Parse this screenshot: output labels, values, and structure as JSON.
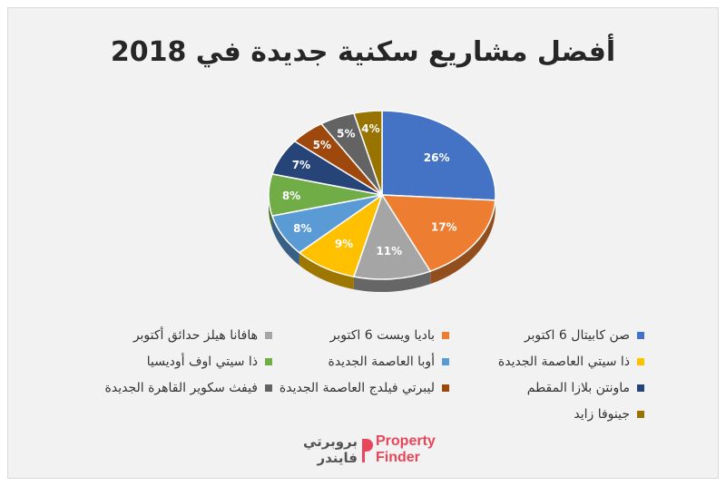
{
  "title": "أفضل مشاريع سكنية جديدة في 2018",
  "brand": {
    "arabic_line1": "بروبرتي",
    "arabic_line2": "فايندر",
    "english_line1": "Property",
    "english_line2": "Finder",
    "color": "#e8465a"
  },
  "chart_data": {
    "type": "pie",
    "title": "أفضل مشاريع سكنية جديدة في 2018",
    "slices": [
      {
        "label": "صن كابيتال 6 اكتوبر",
        "value": 26,
        "display": "26%",
        "color": "#4472c4"
      },
      {
        "label": "باديا ويست 6 اكتوبر",
        "value": 17,
        "display": "17%",
        "color": "#ed7d31"
      },
      {
        "label": "هافانا هيلز حدائق أكتوبر",
        "value": 11,
        "display": "11%",
        "color": "#a5a5a5"
      },
      {
        "label": "ذا سيتي العاصمة الجديدة",
        "value": 9,
        "display": "9%",
        "color": "#ffc000"
      },
      {
        "label": "أوبا العاصمة الجديدة",
        "value": 8,
        "display": "8%",
        "color": "#5b9bd5"
      },
      {
        "label": "ذا سيتي اوف أوديسيا",
        "value": 8,
        "display": "8%",
        "color": "#70ad47"
      },
      {
        "label": "ماونتن بلازا المقطم",
        "value": 7,
        "display": "7%",
        "color": "#264478"
      },
      {
        "label": "ليبرتي فيلدج العاصمة الجديدة",
        "value": 5,
        "display": "5%",
        "color": "#9e480e"
      },
      {
        "label": "فيفث سكوير القاهرة الجديدة",
        "value": 5,
        "display": "5%",
        "color": "#636363"
      },
      {
        "label": "جينوفا زايد",
        "value": 4,
        "display": "4%",
        "color": "#997300"
      }
    ],
    "legend_position": "bottom"
  }
}
